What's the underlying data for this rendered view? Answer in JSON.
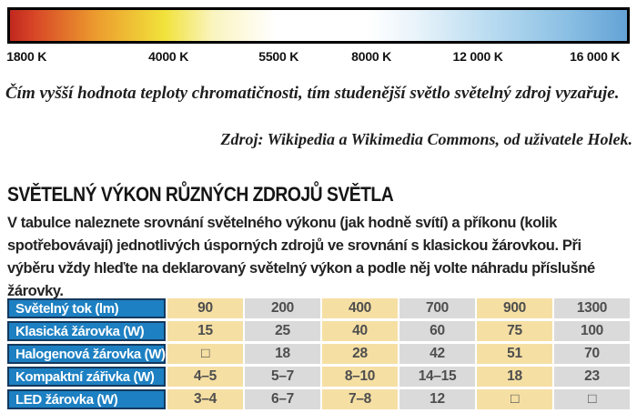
{
  "temperature_scale": {
    "labels": [
      "1800 K",
      "4000 K",
      "5500 K",
      "8000 K",
      "12 000 K",
      "16 000 K"
    ],
    "gradient_stops": [
      {
        "color": "#c0281e",
        "pos": 0
      },
      {
        "color": "#d84727",
        "pos": 4
      },
      {
        "color": "#ec9c2e",
        "pos": 14
      },
      {
        "color": "#f1e23b",
        "pos": 25
      },
      {
        "color": "#faf4c0",
        "pos": 33
      },
      {
        "color": "#ffffff",
        "pos": 43
      },
      {
        "color": "#ffffff",
        "pos": 58
      },
      {
        "color": "#e8f3fa",
        "pos": 66
      },
      {
        "color": "#b8dbf0",
        "pos": 78
      },
      {
        "color": "#8cc0e4",
        "pos": 90
      },
      {
        "color": "#64a3d6",
        "pos": 100
      }
    ]
  },
  "caption": {
    "text": "Čím vyšší hodnota teploty chromatičnosti, tím studenější světlo světelný zdroj vyzařuje.",
    "source": "Zdroj: Wikipedia a Wikimedia Commons, od uživatele Holek."
  },
  "section": {
    "title": "SVĚTELNÝ VÝKON RŮZNÝCH ZDROJŮ SVĚTLA",
    "paragraph": "V tabulce naleznete srovnání světelného výkonu (jak hodně svítí) a příkonu (kolik spotřebovávají) jednotlivých úsporných zdrojů ve srovnání s klasickou žárovkou. Při výběru vždy hleďte na deklarovaný světelný výkon a podle něj volte náhradu příslušné žárovky."
  },
  "table": {
    "colors": {
      "header_bg": "#1d80c2",
      "header_border": "#15395e",
      "header_text": "#ffffff",
      "column_tan": "#f5dfa3",
      "column_gray": "#dadada",
      "cell_text": "#4e4e4e"
    },
    "rows": [
      {
        "label": "Světelný tok (lm)",
        "values": [
          "90",
          "200",
          "400",
          "700",
          "900",
          "1300"
        ]
      },
      {
        "label": "Klasická žárovka (W)",
        "values": [
          "15",
          "25",
          "40",
          "60",
          "75",
          "100"
        ]
      },
      {
        "label": "Halogenová žárovka (W)",
        "values": [
          "□",
          "18",
          "28",
          "42",
          "51",
          "70"
        ]
      },
      {
        "label": "Kompaktní zářivka (W)",
        "values": [
          "4–5",
          "5–7",
          "8–10",
          "14–15",
          "18",
          "23"
        ]
      },
      {
        "label": "LED žárovka (W)",
        "values": [
          "3–4",
          "6–7",
          "7–8",
          "12",
          "□",
          "□"
        ]
      }
    ]
  }
}
